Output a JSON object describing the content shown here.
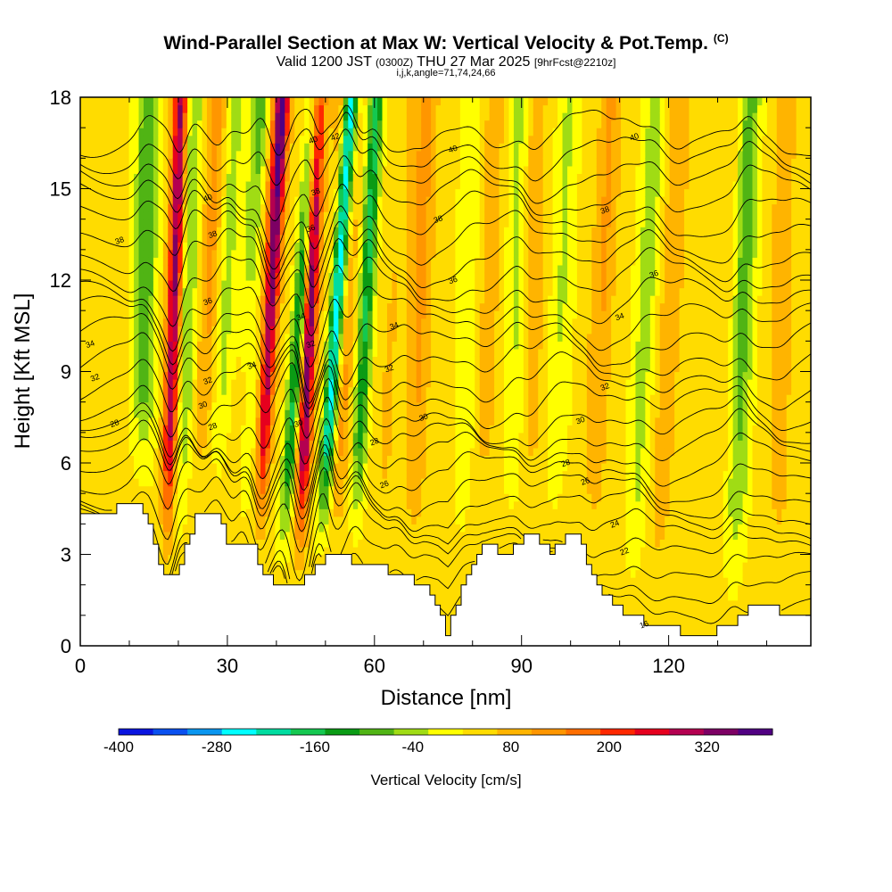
{
  "chart_data": {
    "type": "heatmap",
    "title": "Wind-Parallel Section at Max W: Vertical Velocity & Pot.Temp.",
    "title_mark": "(C)",
    "subtitle_main": "Valid 1200 JST",
    "subtitle_utc": "(0300Z)",
    "subtitle_date": "THU 27 Mar 2025",
    "subtitle_fcst": "[9hrFcst@2210z]",
    "subtitle_grid": "i,j,k,angle=71,74,24,66",
    "xlabel": "Distance [nm]",
    "ylabel": "Height [Kft MSL]",
    "xlim": [
      0,
      149
    ],
    "ylim": [
      0,
      18
    ],
    "x_ticks": [
      0,
      30,
      60,
      90,
      120
    ],
    "y_ticks": [
      0,
      3,
      6,
      9,
      12,
      15,
      18
    ],
    "colorbar_label": "Vertical Velocity [cm/s]",
    "colorbar_tick_labels": [
      -400,
      -280,
      -160,
      -40,
      80,
      200,
      320
    ],
    "colorbar_levels": [
      -400,
      -360,
      -320,
      -280,
      -240,
      -200,
      -160,
      -120,
      -80,
      -40,
      0,
      40,
      80,
      120,
      160,
      200,
      240,
      280,
      320,
      360
    ],
    "colorbar_colors": [
      "#0a14e0",
      "#0a50f0",
      "#0a96f0",
      "#00ffff",
      "#00dca0",
      "#14c850",
      "#0a9b14",
      "#50b414",
      "#a0dc14",
      "#ffff00",
      "#ffdc00",
      "#ffb400",
      "#ff9600",
      "#ff6e00",
      "#ff2800",
      "#e6001e",
      "#b40050",
      "#7d0064",
      "#500082"
    ],
    "updrafts": [
      {
        "x": 17,
        "w": 310,
        "tilt": 0.2
      },
      {
        "x": 23,
        "w": 90,
        "tilt": 0.3
      },
      {
        "x": 29,
        "w": 110,
        "tilt": 0.6
      },
      {
        "x": 35,
        "w": 280,
        "tilt": 0.35
      },
      {
        "x": 44,
        "w": 340,
        "tilt": 0.25
      },
      {
        "x": 51,
        "w": 140,
        "tilt": 0.2
      },
      {
        "x": 61,
        "w": 60,
        "tilt": 0.3
      },
      {
        "x": 67,
        "w": 80,
        "tilt": 0.2
      },
      {
        "x": 81,
        "w": 50,
        "tilt": 0.2
      },
      {
        "x": 91,
        "w": 60,
        "tilt": 0.1
      },
      {
        "x": 103,
        "w": 70,
        "tilt": 0.3
      },
      {
        "x": 117,
        "w": 60,
        "tilt": 0.3
      },
      {
        "x": 128,
        "w": 30,
        "tilt": 0.3
      },
      {
        "x": 142,
        "w": 50,
        "tilt": 0.1
      }
    ],
    "downdrafts": [
      {
        "x": 12,
        "w": -130,
        "tilt": 0.1
      },
      {
        "x": 20,
        "w": -110,
        "tilt": 0.15
      },
      {
        "x": 26,
        "w": -80,
        "tilt": 0.3
      },
      {
        "x": 32,
        "w": -150,
        "tilt": 0.3
      },
      {
        "x": 40,
        "w": -230,
        "tilt": 0.45
      },
      {
        "x": 48,
        "w": -400,
        "tilt": 0.4
      },
      {
        "x": 55,
        "w": -190,
        "tilt": 0.3
      },
      {
        "x": 64,
        "w": -40,
        "tilt": 0.1
      },
      {
        "x": 78,
        "w": -50,
        "tilt": 0.1
      },
      {
        "x": 88,
        "w": -70,
        "tilt": 0.1
      },
      {
        "x": 96,
        "w": -60,
        "tilt": 0.2
      },
      {
        "x": 112,
        "w": -80,
        "tilt": 0.3
      },
      {
        "x": 133,
        "w": -120,
        "tilt": 0.2
      }
    ],
    "terrain": [
      [
        0,
        4.2
      ],
      [
        5,
        4.2
      ],
      [
        9,
        4.8
      ],
      [
        14,
        4.4
      ],
      [
        16,
        3.0
      ],
      [
        18,
        2.0
      ],
      [
        21,
        2.8
      ],
      [
        24,
        4.3
      ],
      [
        28,
        4.4
      ],
      [
        31,
        3.2
      ],
      [
        35,
        3.4
      ],
      [
        38,
        2.4
      ],
      [
        41,
        2.0
      ],
      [
        45,
        2.0
      ],
      [
        47,
        2.3
      ],
      [
        50,
        2.9
      ],
      [
        55,
        2.9
      ],
      [
        58,
        2.6
      ],
      [
        61,
        2.8
      ],
      [
        63,
        2.4
      ],
      [
        66,
        2.3
      ],
      [
        70,
        2.0
      ],
      [
        73,
        1.4
      ],
      [
        75,
        0.4
      ],
      [
        78,
        1.8
      ],
      [
        82,
        3.3
      ],
      [
        85,
        3.2
      ],
      [
        88,
        3.0
      ],
      [
        91,
        3.6
      ],
      [
        94,
        3.5
      ],
      [
        96,
        3.0
      ],
      [
        99,
        3.5
      ],
      [
        102,
        3.6
      ],
      [
        105,
        2.2
      ],
      [
        108,
        1.6
      ],
      [
        112,
        1.0
      ],
      [
        116,
        0.8
      ],
      [
        121,
        0.6
      ],
      [
        124,
        0.4
      ],
      [
        129,
        0.4
      ],
      [
        133,
        0.7
      ],
      [
        137,
        1.2
      ],
      [
        141,
        1.3
      ],
      [
        145,
        1.0
      ],
      [
        149,
        1.0
      ]
    ],
    "theta_levels": [
      16,
      18,
      19,
      20,
      21,
      22,
      23,
      24,
      25,
      26,
      27,
      28,
      29,
      30,
      31,
      32,
      33,
      34,
      35,
      36,
      37,
      38,
      39,
      40,
      41,
      42
    ],
    "theta_labels": [
      {
        "x": 7,
        "y": 7.3,
        "text": "28"
      },
      {
        "x": 3,
        "y": 8.8,
        "text": "32"
      },
      {
        "x": 2,
        "y": 9.9,
        "text": "34"
      },
      {
        "x": 8,
        "y": 13.3,
        "text": "38"
      },
      {
        "x": 27,
        "y": 13.5,
        "text": "38"
      },
      {
        "x": 26,
        "y": 14.7,
        "text": "40"
      },
      {
        "x": 26,
        "y": 11.3,
        "text": "36"
      },
      {
        "x": 26,
        "y": 8.7,
        "text": "32"
      },
      {
        "x": 25,
        "y": 7.9,
        "text": "30"
      },
      {
        "x": 27,
        "y": 7.2,
        "text": "28"
      },
      {
        "x": 35,
        "y": 9.2,
        "text": "34"
      },
      {
        "x": 44.5,
        "y": 7.3,
        "text": "30"
      },
      {
        "x": 45,
        "y": 10.8,
        "text": "34"
      },
      {
        "x": 47,
        "y": 9.9,
        "text": "32"
      },
      {
        "x": 47,
        "y": 13.7,
        "text": "36"
      },
      {
        "x": 48,
        "y": 14.9,
        "text": "38"
      },
      {
        "x": 47.5,
        "y": 16.6,
        "text": "40"
      },
      {
        "x": 52,
        "y": 16.7,
        "text": "42"
      },
      {
        "x": 64,
        "y": 10.5,
        "text": "34"
      },
      {
        "x": 63,
        "y": 9.1,
        "text": "32"
      },
      {
        "x": 70,
        "y": 7.5,
        "text": "30"
      },
      {
        "x": 60,
        "y": 6.7,
        "text": "28"
      },
      {
        "x": 62,
        "y": 5.3,
        "text": "26"
      },
      {
        "x": 76,
        "y": 16.3,
        "text": "40"
      },
      {
        "x": 73,
        "y": 14.0,
        "text": "38"
      },
      {
        "x": 76,
        "y": 12.0,
        "text": "36"
      },
      {
        "x": 113,
        "y": 16.7,
        "text": "40"
      },
      {
        "x": 107,
        "y": 14.3,
        "text": "38"
      },
      {
        "x": 117,
        "y": 12.2,
        "text": "36"
      },
      {
        "x": 110,
        "y": 10.8,
        "text": "34"
      },
      {
        "x": 107,
        "y": 8.5,
        "text": "32"
      },
      {
        "x": 102,
        "y": 7.4,
        "text": "30"
      },
      {
        "x": 99,
        "y": 6.0,
        "text": "28"
      },
      {
        "x": 103,
        "y": 5.4,
        "text": "26"
      },
      {
        "x": 109,
        "y": 4.0,
        "text": "24"
      },
      {
        "x": 111,
        "y": 3.1,
        "text": "22"
      },
      {
        "x": 115,
        "y": 0.7,
        "text": "16"
      }
    ]
  }
}
